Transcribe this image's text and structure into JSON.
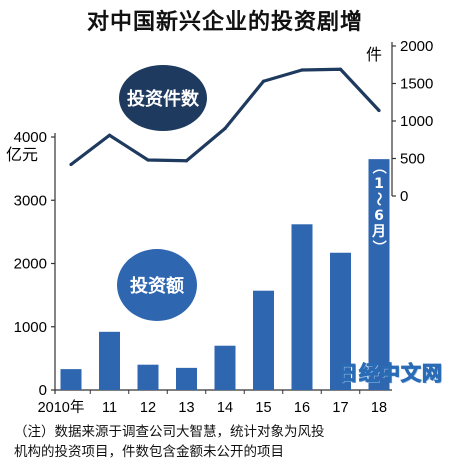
{
  "title": "对中国新兴企业的投资剧增",
  "note_line1": "（注）数据来源于调查公司大智慧，统计对象为风投",
  "note_line2": "机构的投资项目，件数包含金额未公开的项目",
  "watermark": "日经中文网",
  "chart_data": {
    "type": "bar+line",
    "categories": [
      "2010年",
      "11",
      "12",
      "13",
      "14",
      "15",
      "16",
      "17",
      "18"
    ],
    "bar_series": {
      "name": "投资额",
      "unit": "亿元",
      "values": [
        330,
        920,
        400,
        350,
        700,
        1570,
        2620,
        2170,
        3650
      ],
      "ylim": [
        0,
        4000
      ],
      "ticks": [
        0,
        1000,
        2000,
        3000,
        4000
      ],
      "color": "#2e66b0"
    },
    "line_series": {
      "name": "投资件数",
      "unit": "件",
      "values": [
        420,
        810,
        480,
        470,
        900,
        1530,
        1680,
        1690,
        1140
      ],
      "ylim": [
        0,
        2000
      ],
      "ticks": [
        0,
        500,
        1000,
        1500,
        2000
      ],
      "color": "#1e3a5f"
    },
    "annotation": "（1～6月）"
  }
}
